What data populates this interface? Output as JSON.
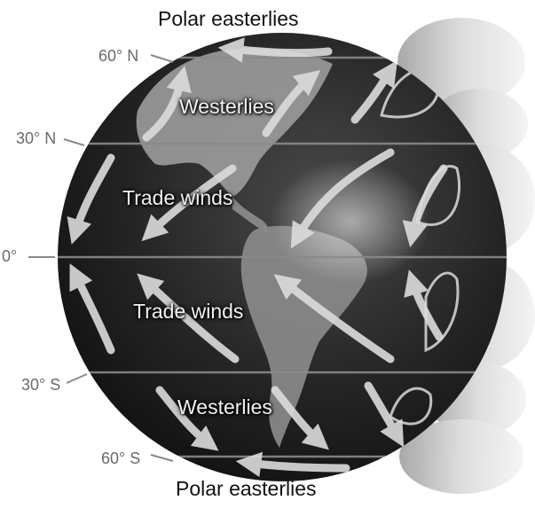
{
  "labels": {
    "polar_easterlies_top": "Polar easterlies",
    "polar_easterlies_bottom": "Polar easterlies",
    "westerlies_north": "Westerlies",
    "westerlies_south": "Westerlies",
    "trade_winds_north": "Trade winds",
    "trade_winds_south": "Trade winds"
  },
  "latitudes": {
    "n60": "60° N",
    "n30": "30° N",
    "equator": "0°",
    "s30": "30° S",
    "s60": "60° S"
  },
  "colors": {
    "globe_dark": "#1f1f1f",
    "land": "#9a9a9a",
    "arrow": "#dcdcdc",
    "latitude_line": "#8a8a8a",
    "cells": "#cfcfcf"
  }
}
